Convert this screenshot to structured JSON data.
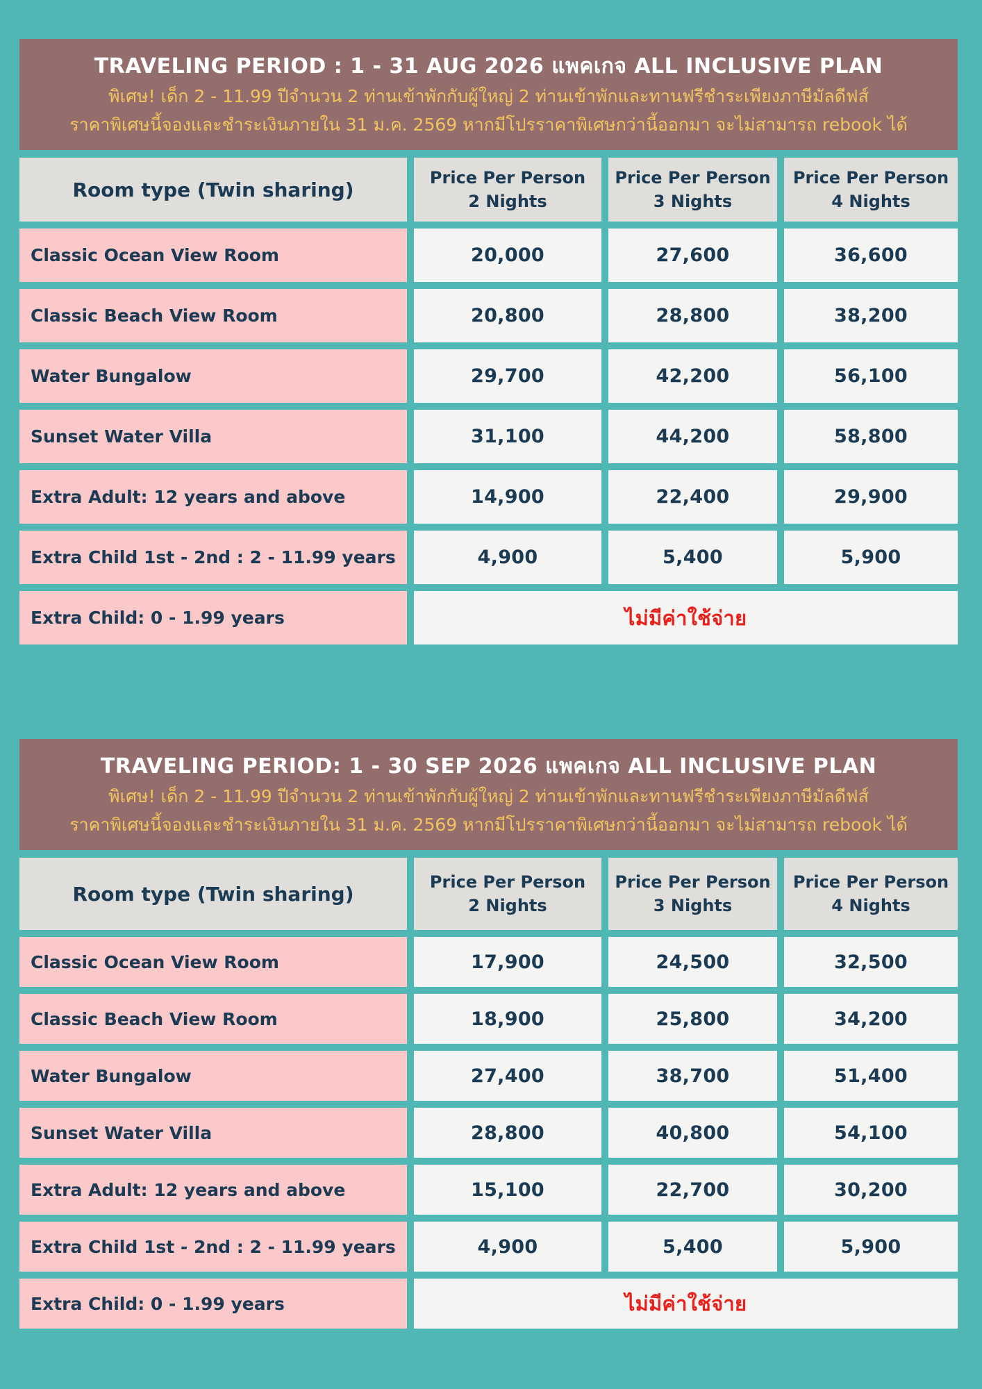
{
  "page": {
    "background_color": "#50B7B5",
    "banner_color": "#946D6D",
    "colors": {
      "banner_title_text": "#FFFFFF",
      "banner_subtitle_text": "#F2C45F",
      "header_cell_bg": "#DFDEDA",
      "room_cell_bg": "#FBC9C9",
      "price_cell_bg": "#F4F4F2",
      "body_text": "#1B3A54",
      "no_charge_text": "#E8211D"
    }
  },
  "tables": [
    {
      "banner": {
        "title": "TRAVELING PERIOD : 1 - 31 AUG 2026 แพคเกจ ALL INCLUSIVE PLAN",
        "subtitle1": "พิเศษ! เด็ก 2 - 11.99 ปีจำนวน 2 ท่านเข้าพักกับผู้ใหญ่ 2 ท่านเข้าพักและทานฟรีชำระเพียงภาษีมัลดีฟส์",
        "subtitle2": "ราคาพิเศษนี้จองและชำระเงินภายใน 31 ม.ค. 2569 หากมีโปรราคาพิเศษกว่านี้ออกมา จะไม่สามารถ rebook ได้"
      },
      "header": {
        "room": "Room type (Twin sharing)",
        "price_label": "Price Per Person",
        "nights": [
          "2 Nights",
          "3 Nights",
          "4 Nights"
        ]
      },
      "rows": [
        {
          "label": "Classic Ocean View Room",
          "n2": "20,000",
          "n3": "27,600",
          "n4": "36,600"
        },
        {
          "label": "Classic Beach View Room",
          "n2": "20,800",
          "n3": "28,800",
          "n4": "38,200"
        },
        {
          "label": "Water Bungalow",
          "n2": "29,700",
          "n3": "42,200",
          "n4": "56,100"
        },
        {
          "label": "Sunset Water Villa",
          "n2": "31,100",
          "n3": "44,200",
          "n4": "58,800"
        },
        {
          "label": "Extra Adult: 12 years and above",
          "n2": "14,900",
          "n3": "22,400",
          "n4": "29,900"
        },
        {
          "label": "Extra Child 1st - 2nd  : 2 - 11.99 years",
          "n2": "4,900",
          "n3": "5,400",
          "n4": "5,900"
        }
      ],
      "free_row": {
        "label": "Extra Child: 0 - 1.99 years",
        "value": "ไม่มีค่าใช้จ่าย"
      }
    },
    {
      "banner": {
        "title": "TRAVELING PERIOD:  1 - 30 SEP 2026  แพคเกจ ALL INCLUSIVE PLAN",
        "subtitle1": "พิเศษ! เด็ก 2 - 11.99 ปีจำนวน 2 ท่านเข้าพักกับผู้ใหญ่ 2 ท่านเข้าพักและทานฟรีชำระเพียงภาษีมัลดีฟส์",
        "subtitle2": "ราคาพิเศษนี้จองและชำระเงินภายใน 31 ม.ค. 2569 หากมีโปรราคาพิเศษกว่านี้ออกมา จะไม่สามารถ rebook ได้"
      },
      "header": {
        "room": "Room type (Twin sharing)",
        "price_label": "Price Per Person",
        "nights": [
          "2 Nights",
          "3 Nights",
          "4 Nights"
        ]
      },
      "rows": [
        {
          "label": "Classic Ocean View Room",
          "n2": "17,900",
          "n3": "24,500",
          "n4": "32,500"
        },
        {
          "label": "Classic Beach View Room",
          "n2": "18,900",
          "n3": "25,800",
          "n4": "34,200"
        },
        {
          "label": "Water Bungalow",
          "n2": "27,400",
          "n3": "38,700",
          "n4": "51,400"
        },
        {
          "label": "Sunset Water Villa",
          "n2": "28,800",
          "n3": "40,800",
          "n4": "54,100"
        },
        {
          "label": "Extra Adult: 12 years and above",
          "n2": "15,100",
          "n3": "22,700",
          "n4": "30,200"
        },
        {
          "label": "Extra Child 1st - 2nd : 2 - 11.99 years",
          "n2": "4,900",
          "n3": "5,400",
          "n4": "5,900"
        }
      ],
      "free_row": {
        "label": "Extra Child: 0 - 1.99 years",
        "value": "ไม่มีค่าใช้จ่าย"
      }
    }
  ]
}
